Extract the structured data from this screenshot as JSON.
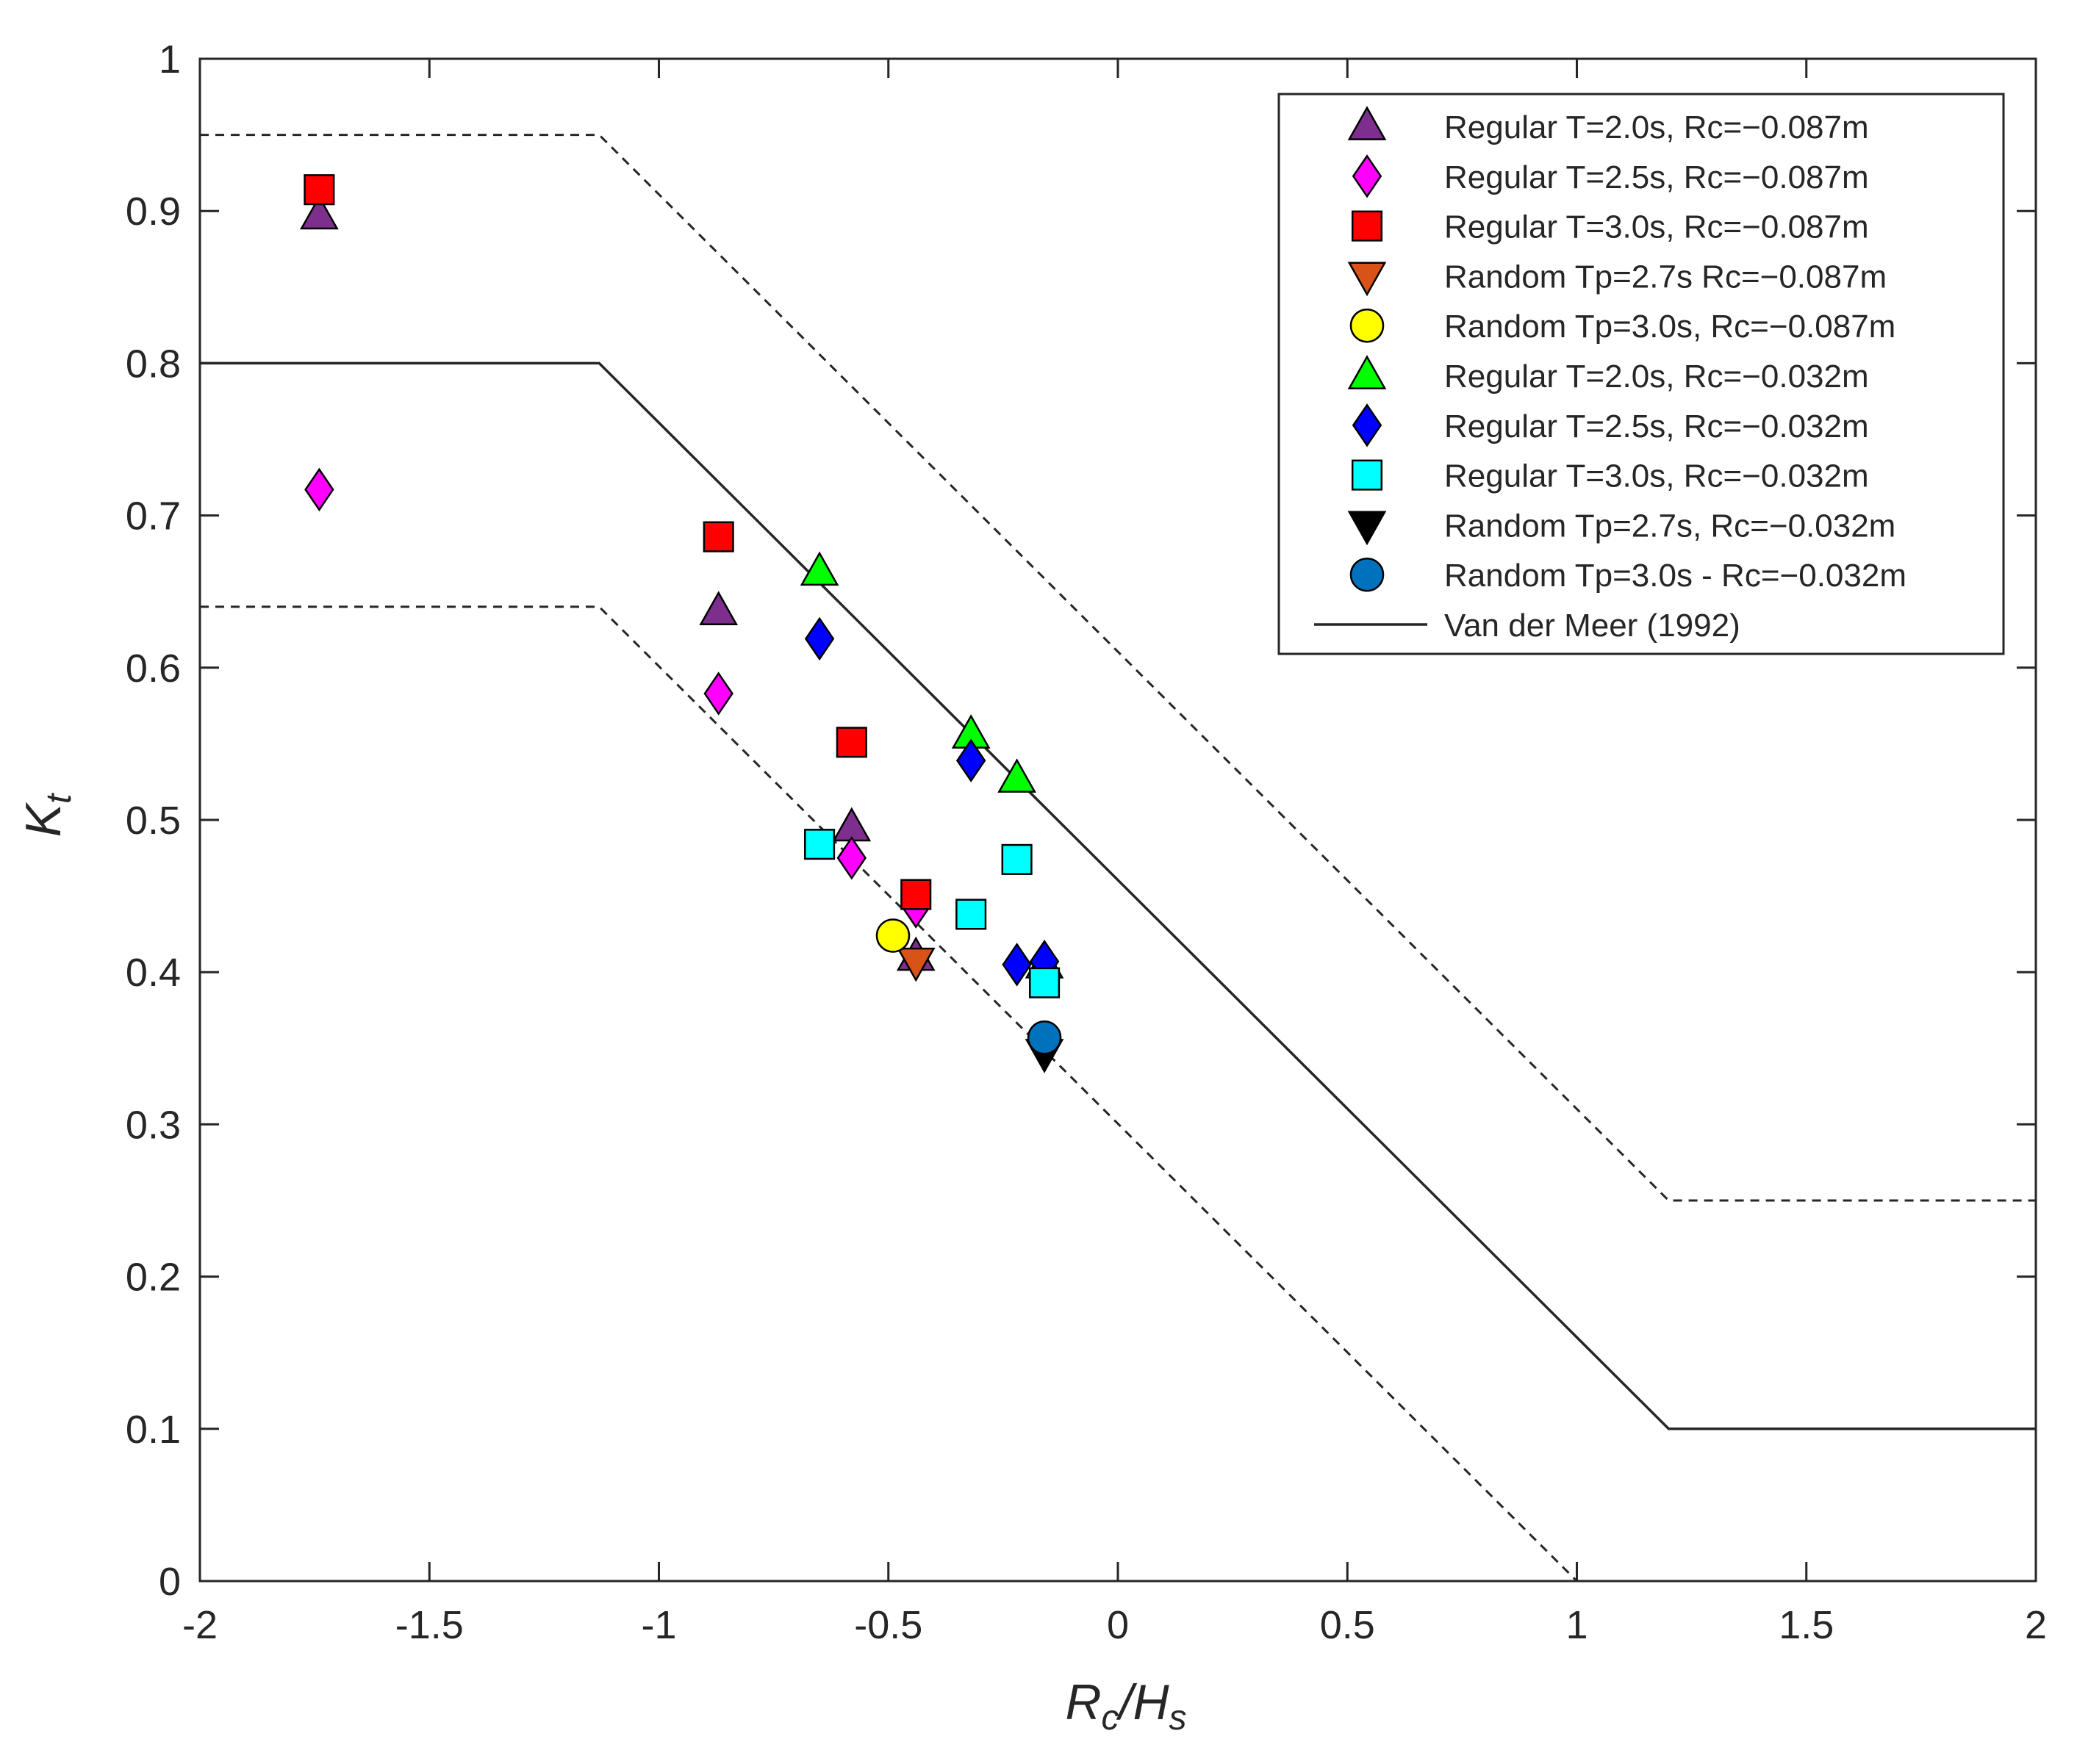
{
  "chart_data": {
    "type": "scatter",
    "title": "",
    "xlabel": "Rc/Hs",
    "ylabel": "Kt",
    "xlim": [
      -2,
      2
    ],
    "ylim": [
      0,
      1
    ],
    "xticks": [
      "-2",
      "-1.5",
      "-1",
      "-0.5",
      "0",
      "0.5",
      "1",
      "1.5",
      "2"
    ],
    "yticks": [
      "0",
      "0.1",
      "0.2",
      "0.3",
      "0.4",
      "0.5",
      "0.6",
      "0.7",
      "0.8",
      "0.9",
      "1"
    ],
    "grid": false,
    "legend_position": "top-right",
    "series": [
      {
        "name": "Regular T=2.0s, Rc=−0.087m",
        "marker": "triangle-up",
        "color": "#7E2F8E",
        "points": [
          [
            -1.74,
            0.897
          ],
          [
            -0.87,
            0.637
          ],
          [
            -0.58,
            0.495
          ],
          [
            -0.44,
            0.41
          ]
        ]
      },
      {
        "name": "Regular T=2.5s, Rc=−0.087m",
        "marker": "diamond",
        "color": "#FF00FF",
        "points": [
          [
            -1.74,
            0.717
          ],
          [
            -0.87,
            0.583
          ],
          [
            -0.58,
            0.475
          ],
          [
            -0.44,
            0.443
          ]
        ]
      },
      {
        "name": "Regular T=3.0s, Rc=−0.087m",
        "marker": "square",
        "color": "#FF0000",
        "points": [
          [
            -1.74,
            0.914
          ],
          [
            -0.87,
            0.686
          ],
          [
            -0.58,
            0.551
          ],
          [
            -0.44,
            0.451
          ]
        ]
      },
      {
        "name": "Random Tp=2.7s Rc=−0.087m",
        "marker": "triangle-down",
        "color": "#D95319",
        "points": [
          [
            -0.44,
            0.407
          ]
        ]
      },
      {
        "name": "Random Tp=3.0s, Rc=−0.087m",
        "marker": "circle",
        "color": "#FFFF00",
        "points": [
          [
            -0.49,
            0.424
          ]
        ]
      },
      {
        "name": "Regular T=2.0s, Rc=−0.032m",
        "marker": "triangle-up",
        "color": "#00FF00",
        "points": [
          [
            -0.65,
            0.663
          ],
          [
            -0.32,
            0.556
          ],
          [
            -0.22,
            0.527
          ],
          [
            -0.16,
            0.405
          ]
        ]
      },
      {
        "name": "Regular T=2.5s, Rc=−0.032m",
        "marker": "diamond",
        "color": "#0000FF",
        "points": [
          [
            -0.65,
            0.619
          ],
          [
            -0.32,
            0.539
          ],
          [
            -0.22,
            0.405
          ],
          [
            -0.16,
            0.407
          ]
        ]
      },
      {
        "name": "Regular T=3.0s, Rc=−0.032m",
        "marker": "square",
        "color": "#00FFFF",
        "points": [
          [
            -0.65,
            0.484
          ],
          [
            -0.32,
            0.438
          ],
          [
            -0.22,
            0.474
          ],
          [
            -0.16,
            0.393
          ]
        ]
      },
      {
        "name": "Random Tp=2.7s, Rc=−0.032m",
        "marker": "triangle-down",
        "color": "#000000",
        "points": [
          [
            -0.16,
            0.347
          ]
        ]
      },
      {
        "name": "Random Tp=3.0s - Rc=−0.032m",
        "marker": "circle",
        "color": "#0072BD",
        "points": [
          [
            -0.16,
            0.357
          ]
        ]
      }
    ],
    "lines": [
      {
        "name": "Van der Meer (1992)",
        "style": "solid",
        "in_legend": true,
        "points": [
          [
            -2,
            0.8
          ],
          [
            -1.13,
            0.8
          ],
          [
            1.2,
            0.1
          ],
          [
            2,
            0.1
          ]
        ]
      },
      {
        "name": "upper bound",
        "style": "dashed",
        "in_legend": false,
        "points": [
          [
            -2,
            0.95
          ],
          [
            -1.13,
            0.95
          ],
          [
            1.2,
            0.25
          ],
          [
            2,
            0.25
          ]
        ]
      },
      {
        "name": "lower bound",
        "style": "dashed",
        "in_legend": false,
        "points": [
          [
            -2,
            0.64
          ],
          [
            -1.13,
            0.64
          ],
          [
            1.0,
            0.0
          ],
          [
            2,
            0.0
          ]
        ]
      }
    ]
  }
}
